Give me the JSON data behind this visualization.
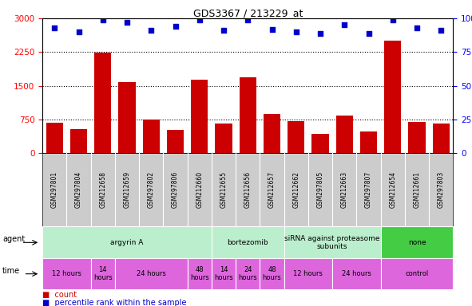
{
  "title": "GDS3367 / 213229_at",
  "samples": [
    "GSM297801",
    "GSM297804",
    "GSM212658",
    "GSM212659",
    "GSM297802",
    "GSM297806",
    "GSM212660",
    "GSM212655",
    "GSM212656",
    "GSM212657",
    "GSM212662",
    "GSM297805",
    "GSM212663",
    "GSM297807",
    "GSM212654",
    "GSM212661",
    "GSM297803"
  ],
  "counts": [
    670,
    530,
    2230,
    1580,
    750,
    510,
    1640,
    650,
    1680,
    870,
    710,
    430,
    830,
    480,
    2510,
    700,
    650
  ],
  "percentiles": [
    93,
    90,
    99,
    97,
    91,
    94,
    99,
    91,
    99,
    92,
    90,
    89,
    95,
    89,
    99,
    93,
    91
  ],
  "bar_color": "#cc0000",
  "scatter_color": "#0000cc",
  "ylim_left": [
    0,
    3000
  ],
  "ylim_right": [
    0,
    100
  ],
  "yticks_left": [
    0,
    750,
    1500,
    2250,
    3000
  ],
  "yticks_right": [
    0,
    25,
    50,
    75,
    100
  ],
  "agent_groups": [
    {
      "label": "argyrin A",
      "start": 0,
      "end": 7,
      "color": "#bbeecc"
    },
    {
      "label": "bortezomib",
      "start": 7,
      "end": 10,
      "color": "#bbeecc"
    },
    {
      "label": "siRNA against proteasome\nsubunits",
      "start": 10,
      "end": 14,
      "color": "#bbeecc"
    },
    {
      "label": "none",
      "start": 14,
      "end": 17,
      "color": "#44cc44"
    }
  ],
  "time_groups": [
    {
      "label": "12 hours",
      "start": 0,
      "end": 2
    },
    {
      "label": "14\nhours",
      "start": 2,
      "end": 3
    },
    {
      "label": "24 hours",
      "start": 3,
      "end": 6
    },
    {
      "label": "48\nhours",
      "start": 6,
      "end": 7
    },
    {
      "label": "14\nhours",
      "start": 7,
      "end": 8
    },
    {
      "label": "24\nhours",
      "start": 8,
      "end": 9
    },
    {
      "label": "48\nhours",
      "start": 9,
      "end": 10
    },
    {
      "label": "12 hours",
      "start": 10,
      "end": 12
    },
    {
      "label": "24 hours",
      "start": 12,
      "end": 14
    },
    {
      "label": "control",
      "start": 14,
      "end": 17
    }
  ],
  "time_color": "#dd66dd",
  "sample_bg_color": "#cccccc",
  "agent_border_color": "#ffffff",
  "bar_color_legend": "#cc0000",
  "scatter_color_legend": "#0000cc"
}
